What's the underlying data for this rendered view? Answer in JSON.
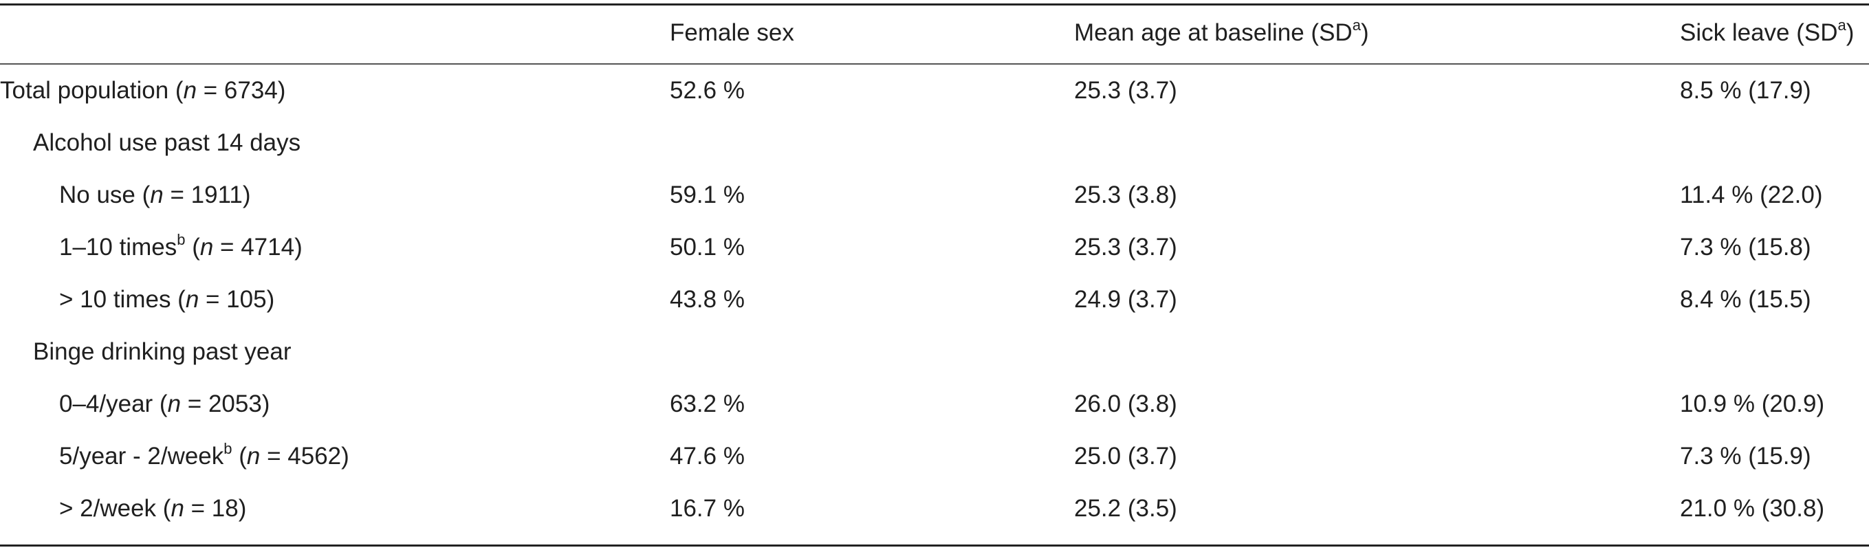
{
  "headers": {
    "col1": "Female sex",
    "col2_text": "Mean age at baseline (SD",
    "col2_sup": "a",
    "col2_close": ")",
    "col3_text": "Sick leave (SD",
    "col3_sup": "a",
    "col3_close": ")"
  },
  "rows": [
    {
      "label_pre": "Total population (",
      "n_symbol": "n",
      "label_post": " = 6734)",
      "sup": "",
      "female": "52.6 %",
      "age": "25.3 (3.7)",
      "sick": "8.5 % (17.9)"
    },
    {
      "label_pre": "Alcohol use past 14 days",
      "n_symbol": "",
      "label_post": "",
      "sup": "",
      "female": "",
      "age": "",
      "sick": ""
    },
    {
      "label_pre": "No use (",
      "n_symbol": "n",
      "label_post": " = 1911)",
      "sup": "",
      "female": "59.1 %",
      "age": "25.3 (3.8)",
      "sick": "11.4 % (22.0)"
    },
    {
      "label_pre": "1–10 times",
      "sup": "b",
      "label_mid": " (",
      "n_symbol": "n",
      "label_post": " = 4714)",
      "female": "50.1 %",
      "age": "25.3 (3.7)",
      "sick": "7.3 % (15.8)"
    },
    {
      "label_pre": "> 10 times (",
      "n_symbol": "n",
      "label_post": " = 105)",
      "sup": "",
      "female": "43.8 %",
      "age": "24.9 (3.7)",
      "sick": "8.4 % (15.5)"
    },
    {
      "label_pre": "Binge drinking past year",
      "n_symbol": "",
      "label_post": "",
      "sup": "",
      "female": "",
      "age": "",
      "sick": ""
    },
    {
      "label_pre": "0–4/year (",
      "n_symbol": "n",
      "label_post": " = 2053)",
      "sup": "",
      "female": "63.2 %",
      "age": "26.0 (3.8)",
      "sick": "10.9 % (20.9)"
    },
    {
      "label_pre": "5/year - 2/week",
      "sup": "b",
      "label_mid": " (",
      "n_symbol": "n",
      "label_post": " = 4562)",
      "female": "47.6 %",
      "age": "25.0 (3.7)",
      "sick": "7.3 % (15.9)"
    },
    {
      "label_pre": "> 2/week (",
      "n_symbol": "n",
      "label_post": " = 18)",
      "sup": "",
      "female": "16.7 %",
      "age": "25.2 (3.5)",
      "sick": "21.0 % (30.8)"
    }
  ]
}
